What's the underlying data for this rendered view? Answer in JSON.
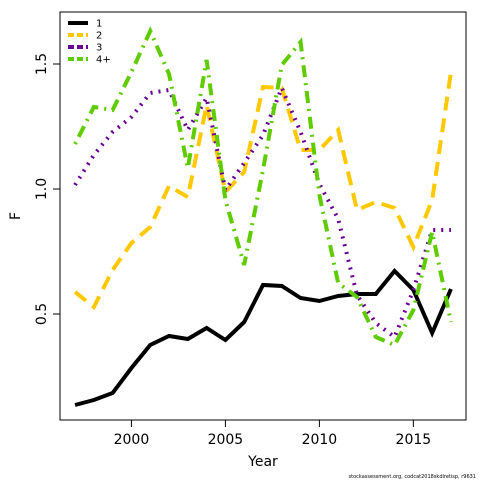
{
  "chart_data": {
    "type": "line",
    "xlabel": "Year",
    "ylabel": "F",
    "footnote": "stockassessment.org, codcat2018skdiretisp, r9631",
    "x": [
      1997,
      1998,
      1999,
      2000,
      2001,
      2002,
      2003,
      2004,
      2005,
      2006,
      2007,
      2008,
      2009,
      2010,
      2011,
      2012,
      2013,
      2014,
      2015,
      2016,
      2017
    ],
    "series": [
      {
        "name": "1",
        "color": "#000000",
        "linestyle": "solid",
        "values": [
          0.136,
          0.156,
          0.184,
          0.284,
          0.376,
          0.412,
          0.4,
          0.444,
          0.396,
          0.468,
          0.616,
          0.612,
          0.564,
          0.552,
          0.572,
          0.58,
          0.58,
          0.672,
          0.596,
          0.424,
          0.6
        ]
      },
      {
        "name": "2",
        "color": "#ffc800",
        "linestyle": "dashed",
        "values": [
          0.588,
          0.528,
          0.676,
          0.784,
          0.848,
          1.012,
          0.968,
          1.336,
          0.988,
          1.068,
          1.408,
          1.404,
          1.156,
          1.156,
          1.236,
          0.916,
          0.948,
          0.924,
          0.768,
          0.956,
          1.468
        ]
      },
      {
        "name": "3",
        "color": "#6a0094",
        "linestyle": "dotted",
        "values": [
          1.016,
          1.136,
          1.228,
          1.288,
          1.384,
          1.396,
          1.236,
          1.364,
          0.996,
          1.104,
          1.216,
          1.404,
          1.228,
          1.02,
          0.88,
          0.576,
          0.464,
          0.408,
          0.596,
          0.836,
          0.836
        ]
      },
      {
        "name": "4+",
        "color": "#5fcc00",
        "linestyle": "dotdash",
        "values": [
          1.18,
          1.328,
          1.316,
          1.468,
          1.632,
          1.46,
          1.084,
          1.516,
          0.956,
          0.696,
          1.076,
          1.496,
          1.588,
          0.976,
          0.624,
          0.568,
          0.408,
          0.376,
          0.516,
          0.828,
          0.468
        ]
      }
    ],
    "xlim": [
      1996.2,
      2017.8
    ],
    "xticks": [
      2000,
      2005,
      2010,
      2015
    ],
    "ylim": [
      0.076,
      1.708
    ],
    "yticks": [
      {
        "value": 0.5,
        "label": "0.5"
      },
      {
        "value": 1.0,
        "label": "1.0"
      },
      {
        "value": 1.5,
        "label": "1.5"
      }
    ],
    "legend": "top-left"
  }
}
